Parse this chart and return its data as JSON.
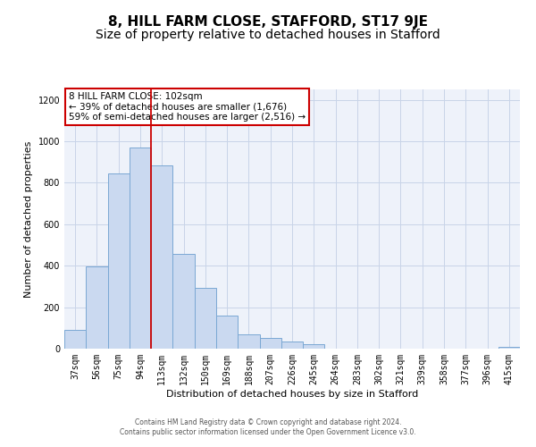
{
  "title": "8, HILL FARM CLOSE, STAFFORD, ST17 9JE",
  "subtitle": "Size of property relative to detached houses in Stafford",
  "xlabel": "Distribution of detached houses by size in Stafford",
  "ylabel": "Number of detached properties",
  "categories": [
    "37sqm",
    "56sqm",
    "75sqm",
    "94sqm",
    "113sqm",
    "132sqm",
    "150sqm",
    "169sqm",
    "188sqm",
    "207sqm",
    "226sqm",
    "245sqm",
    "264sqm",
    "283sqm",
    "302sqm",
    "321sqm",
    "339sqm",
    "358sqm",
    "377sqm",
    "396sqm",
    "415sqm"
  ],
  "values": [
    90,
    395,
    845,
    970,
    885,
    455,
    295,
    160,
    70,
    50,
    35,
    20,
    0,
    0,
    0,
    0,
    0,
    0,
    0,
    0,
    10
  ],
  "bar_color": "#cad9f0",
  "bar_edge_color": "#7aa8d4",
  "vline_color": "#cc0000",
  "vline_bin": 3.5,
  "annotation_title": "8 HILL FARM CLOSE: 102sqm",
  "annotation_line1": "← 39% of detached houses are smaller (1,676)",
  "annotation_line2": "59% of semi-detached houses are larger (2,516) →",
  "annotation_box_color": "#ffffff",
  "annotation_box_edge_color": "#cc0000",
  "ylim": [
    0,
    1250
  ],
  "yticks": [
    0,
    200,
    400,
    600,
    800,
    1000,
    1200
  ],
  "grid_color": "#c8d4e8",
  "bg_color": "#eef2fa",
  "title_fontsize": 11,
  "subtitle_fontsize": 10,
  "axis_label_fontsize": 8,
  "tick_fontsize": 7,
  "footer_line1": "Contains HM Land Registry data © Crown copyright and database right 2024.",
  "footer_line2": "Contains public sector information licensed under the Open Government Licence v3.0."
}
